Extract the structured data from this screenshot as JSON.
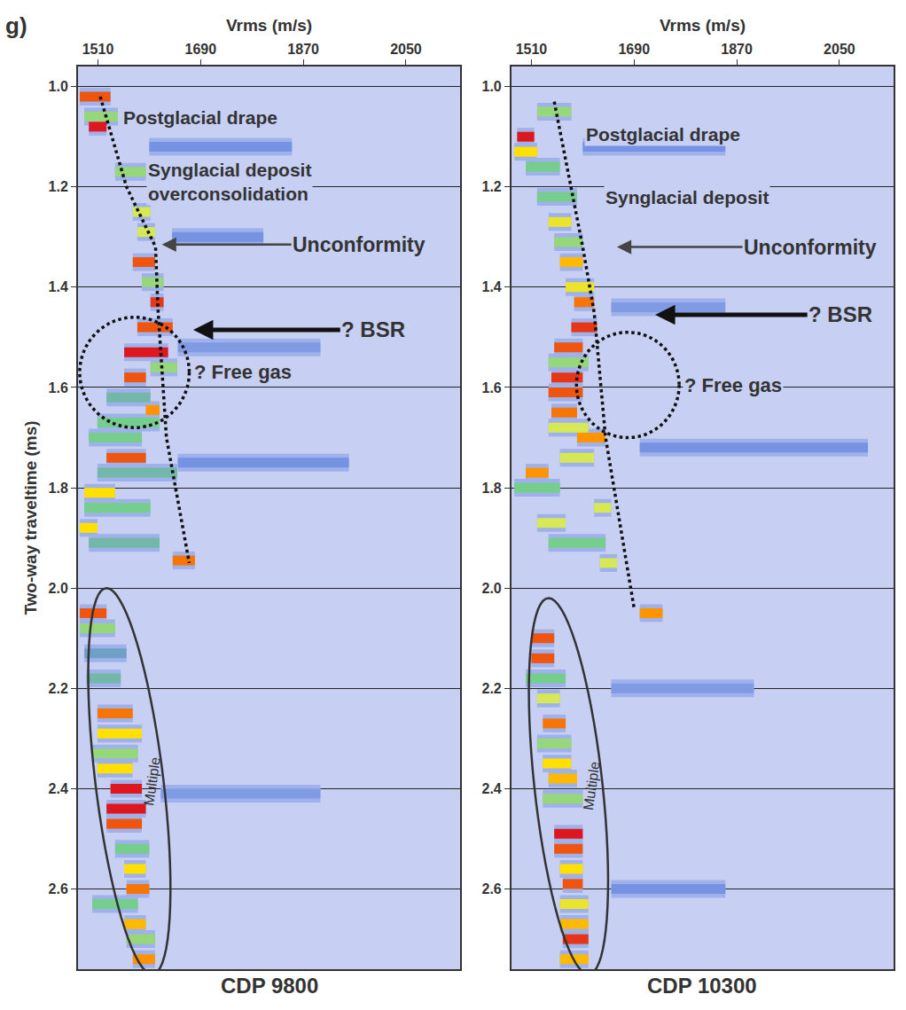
{
  "panel_label": "g)",
  "chart_data": [
    {
      "type": "semblance",
      "title": "CDP 9800",
      "x_label": "Vrms (m/s)",
      "y_label": "Two-way traveltime (ms)",
      "xlim": [
        1475,
        2145
      ],
      "xticks": [
        1510,
        1690,
        1870,
        2050
      ],
      "ylim": [
        0.96,
        2.76
      ],
      "yticks": [
        {
          "value": 1.0,
          "label": "1.0"
        },
        {
          "value": 1.2,
          "label": "1.2"
        },
        {
          "value": 1.4,
          "label": "1.4"
        },
        {
          "value": 1.6,
          "label": "1.6"
        },
        {
          "value": 1.8,
          "label": "1.8"
        },
        {
          "value": 2.0,
          "label": "2.0"
        },
        {
          "value": 2.2,
          "label": "2.2"
        },
        {
          "value": 2.4,
          "label": "2.4"
        },
        {
          "value": 2.6,
          "label": "2.6"
        }
      ],
      "grid": true,
      "semblance": [
        {
          "t": 1.02,
          "v": [
            1478,
            1532
          ],
          "value": 0.9
        },
        {
          "t": 1.06,
          "v": [
            1486,
            1545
          ],
          "value": 0.5
        },
        {
          "t": 1.08,
          "v": [
            1494,
            1525
          ],
          "value": 1.0
        },
        {
          "t": 1.12,
          "v": [
            1600,
            1850
          ],
          "value": 0.25
        },
        {
          "t": 1.17,
          "v": [
            1540,
            1594
          ],
          "value": 0.5
        },
        {
          "t": 1.25,
          "v": [
            1571,
            1602
          ],
          "value": 0.6
        },
        {
          "t": 1.29,
          "v": [
            1579,
            1610
          ],
          "value": 0.6
        },
        {
          "t": 1.3,
          "v": [
            1640,
            1800
          ],
          "value": 0.25
        },
        {
          "t": 1.35,
          "v": [
            1571,
            1610
          ],
          "value": 0.9
        },
        {
          "t": 1.39,
          "v": [
            1587,
            1625
          ],
          "value": 0.5
        },
        {
          "t": 1.43,
          "v": [
            1602,
            1625
          ],
          "value": 0.95
        },
        {
          "t": 1.48,
          "v": [
            1579,
            1641
          ],
          "value": 0.9
        },
        {
          "t": 1.52,
          "v": [
            1650,
            1900
          ],
          "value": 0.2
        },
        {
          "t": 1.53,
          "v": [
            1556,
            1633
          ],
          "value": 1.0
        },
        {
          "t": 1.56,
          "v": [
            1602,
            1649
          ],
          "value": 0.5
        },
        {
          "t": 1.58,
          "v": [
            1556,
            1594
          ],
          "value": 0.9
        },
        {
          "t": 1.62,
          "v": [
            1525,
            1602
          ],
          "value": 0.4
        },
        {
          "t": 1.645,
          "v": [
            1594,
            1618
          ],
          "value": 0.8
        },
        {
          "t": 1.67,
          "v": [
            1509,
            1618
          ],
          "value": 0.45
        },
        {
          "t": 1.7,
          "v": [
            1494,
            1587
          ],
          "value": 0.45
        },
        {
          "t": 1.74,
          "v": [
            1525,
            1594
          ],
          "value": 0.9
        },
        {
          "t": 1.75,
          "v": [
            1650,
            1950
          ],
          "value": 0.25
        },
        {
          "t": 1.77,
          "v": [
            1509,
            1649
          ],
          "value": 0.4
        },
        {
          "t": 1.81,
          "v": [
            1486,
            1540
          ],
          "value": 0.7
        },
        {
          "t": 1.84,
          "v": [
            1486,
            1602
          ],
          "value": 0.45
        },
        {
          "t": 1.88,
          "v": [
            1478,
            1509
          ],
          "value": 0.7
        },
        {
          "t": 1.91,
          "v": [
            1494,
            1618
          ],
          "value": 0.4
        },
        {
          "t": 1.945,
          "v": [
            1641,
            1680
          ],
          "value": 0.85
        },
        {
          "t": 2.05,
          "v": [
            1478,
            1525
          ],
          "value": 0.9
        },
        {
          "t": 2.08,
          "v": [
            1478,
            1540
          ],
          "value": 0.5
        },
        {
          "t": 2.13,
          "v": [
            1486,
            1560
          ],
          "value": 0.35
        },
        {
          "t": 2.18,
          "v": [
            1490,
            1550
          ],
          "value": 0.4
        },
        {
          "t": 2.25,
          "v": [
            1509,
            1571
          ],
          "value": 0.85
        },
        {
          "t": 2.29,
          "v": [
            1509,
            1587
          ],
          "value": 0.7
        },
        {
          "t": 2.33,
          "v": [
            1500,
            1580
          ],
          "value": 0.5
        },
        {
          "t": 2.36,
          "v": [
            1509,
            1571
          ],
          "value": 0.7
        },
        {
          "t": 2.4,
          "v": [
            1532,
            1587
          ],
          "value": 1.0
        },
        {
          "t": 2.41,
          "v": [
            1620,
            1900
          ],
          "value": 0.2
        },
        {
          "t": 2.44,
          "v": [
            1525,
            1594
          ],
          "value": 1.0
        },
        {
          "t": 2.47,
          "v": [
            1525,
            1587
          ],
          "value": 0.9
        },
        {
          "t": 2.52,
          "v": [
            1540,
            1600
          ],
          "value": 0.45
        },
        {
          "t": 2.56,
          "v": [
            1556,
            1594
          ],
          "value": 0.7
        },
        {
          "t": 2.6,
          "v": [
            1560,
            1600
          ],
          "value": 0.85
        },
        {
          "t": 2.63,
          "v": [
            1500,
            1580
          ],
          "value": 0.45
        },
        {
          "t": 2.67,
          "v": [
            1556,
            1594
          ],
          "value": 0.75
        },
        {
          "t": 2.7,
          "v": [
            1560,
            1610
          ],
          "value": 0.5
        },
        {
          "t": 2.74,
          "v": [
            1571,
            1610
          ],
          "value": 0.8
        }
      ],
      "velocity_pick": {
        "v": [
          1514,
          1560,
          1611,
          1615,
          1630,
          1670
        ],
        "t": [
          1.02,
          1.2,
          1.32,
          1.44,
          1.7,
          1.95
        ]
      },
      "annotations": [
        {
          "text": "Postglacial drape",
          "v": 1551,
          "t": 1.061
        },
        {
          "text": "Synglacial deposit\noverconsolidation",
          "v": 1594,
          "t": 1.19
        },
        {
          "text": "Unconformity",
          "v": 1622,
          "t": 1.315,
          "text_v": 1968,
          "line_style": "thin"
        },
        {
          "text": "? BSR",
          "v": 1677,
          "t": 1.485,
          "text_v": 1993,
          "line_style": "thick"
        }
      ],
      "regions": [
        {
          "label": "? Free gas",
          "shape": "circle",
          "v": [
            1478,
            1670
          ],
          "t": [
            1.46,
            1.68
          ]
        },
        {
          "label": "Multiple",
          "shape": "ellipse",
          "v": [
            1525,
            1605
          ],
          "t": [
            2.0,
            2.77
          ],
          "half_width": 60
        }
      ]
    },
    {
      "type": "semblance",
      "title": "CDP 10300",
      "x_label": "Vrms (m/s)",
      "xlim": [
        1475,
        2145
      ],
      "xticks": [
        1510,
        1690,
        1870,
        2050
      ],
      "ylim": [
        0.96,
        2.76
      ],
      "yticks": [
        {
          "value": 1.0,
          "label": "1.0"
        },
        {
          "value": 1.2,
          "label": "1.2"
        },
        {
          "value": 1.4,
          "label": "1.4"
        },
        {
          "value": 1.6,
          "label": "1.6"
        },
        {
          "value": 1.8,
          "label": "1.8"
        },
        {
          "value": 2.0,
          "label": "2.0"
        },
        {
          "value": 2.2,
          "label": "2.2"
        },
        {
          "value": 2.4,
          "label": "2.4"
        },
        {
          "value": 2.6,
          "label": "2.6"
        }
      ],
      "grid": true,
      "semblance": [
        {
          "t": 1.05,
          "v": [
            1520,
            1580
          ],
          "value": 0.5
        },
        {
          "t": 1.1,
          "v": [
            1485,
            1515
          ],
          "value": 1.0
        },
        {
          "t": 1.12,
          "v": [
            1600,
            1850
          ],
          "value": 0.25
        },
        {
          "t": 1.13,
          "v": [
            1480,
            1520
          ],
          "value": 0.7
        },
        {
          "t": 1.16,
          "v": [
            1500,
            1560
          ],
          "value": 0.45
        },
        {
          "t": 1.22,
          "v": [
            1520,
            1590
          ],
          "value": 0.45
        },
        {
          "t": 1.27,
          "v": [
            1540,
            1580
          ],
          "value": 0.65
        },
        {
          "t": 1.31,
          "v": [
            1550,
            1600
          ],
          "value": 0.5
        },
        {
          "t": 1.35,
          "v": [
            1560,
            1600
          ],
          "value": 0.75
        },
        {
          "t": 1.4,
          "v": [
            1570,
            1620
          ],
          "value": 0.65
        },
        {
          "t": 1.43,
          "v": [
            1585,
            1620
          ],
          "value": 0.85
        },
        {
          "t": 1.44,
          "v": [
            1650,
            1850
          ],
          "value": 0.2
        },
        {
          "t": 1.48,
          "v": [
            1580,
            1625
          ],
          "value": 0.95
        },
        {
          "t": 1.52,
          "v": [
            1550,
            1600
          ],
          "value": 0.9
        },
        {
          "t": 1.55,
          "v": [
            1540,
            1610
          ],
          "value": 0.5
        },
        {
          "t": 1.58,
          "v": [
            1545,
            1600
          ],
          "value": 0.95
        },
        {
          "t": 1.61,
          "v": [
            1540,
            1600
          ],
          "value": 0.9
        },
        {
          "t": 1.65,
          "v": [
            1545,
            1590
          ],
          "value": 0.85
        },
        {
          "t": 1.68,
          "v": [
            1540,
            1610
          ],
          "value": 0.6
        },
        {
          "t": 1.7,
          "v": [
            1590,
            1640
          ],
          "value": 0.8
        },
        {
          "t": 1.72,
          "v": [
            1700,
            2100
          ],
          "value": 0.25
        },
        {
          "t": 1.74,
          "v": [
            1560,
            1620
          ],
          "value": 0.6
        },
        {
          "t": 1.77,
          "v": [
            1500,
            1540
          ],
          "value": 0.8
        },
        {
          "t": 1.8,
          "v": [
            1480,
            1560
          ],
          "value": 0.45
        },
        {
          "t": 1.84,
          "v": [
            1620,
            1650
          ],
          "value": 0.6
        },
        {
          "t": 1.87,
          "v": [
            1520,
            1570
          ],
          "value": 0.6
        },
        {
          "t": 1.91,
          "v": [
            1540,
            1640
          ],
          "value": 0.45
        },
        {
          "t": 1.95,
          "v": [
            1630,
            1660
          ],
          "value": 0.6
        },
        {
          "t": 2.05,
          "v": [
            1700,
            1740
          ],
          "value": 0.8
        },
        {
          "t": 2.1,
          "v": [
            1510,
            1550
          ],
          "value": 0.9
        },
        {
          "t": 2.14,
          "v": [
            1510,
            1550
          ],
          "value": 0.9
        },
        {
          "t": 2.18,
          "v": [
            1500,
            1570
          ],
          "value": 0.45
        },
        {
          "t": 2.2,
          "v": [
            1650,
            1900
          ],
          "value": 0.2
        },
        {
          "t": 2.22,
          "v": [
            1520,
            1560
          ],
          "value": 0.6
        },
        {
          "t": 2.27,
          "v": [
            1530,
            1570
          ],
          "value": 0.85
        },
        {
          "t": 2.31,
          "v": [
            1520,
            1580
          ],
          "value": 0.5
        },
        {
          "t": 2.35,
          "v": [
            1530,
            1580
          ],
          "value": 0.7
        },
        {
          "t": 2.38,
          "v": [
            1540,
            1590
          ],
          "value": 0.75
        },
        {
          "t": 2.42,
          "v": [
            1530,
            1600
          ],
          "value": 0.5
        },
        {
          "t": 2.49,
          "v": [
            1550,
            1600
          ],
          "value": 1.0
        },
        {
          "t": 2.52,
          "v": [
            1550,
            1600
          ],
          "value": 0.9
        },
        {
          "t": 2.56,
          "v": [
            1560,
            1600
          ],
          "value": 0.7
        },
        {
          "t": 2.59,
          "v": [
            1565,
            1600
          ],
          "value": 0.9
        },
        {
          "t": 2.6,
          "v": [
            1650,
            1850
          ],
          "value": 0.25
        },
        {
          "t": 2.63,
          "v": [
            1560,
            1610
          ],
          "value": 0.65
        },
        {
          "t": 2.67,
          "v": [
            1560,
            1610
          ],
          "value": 0.75
        },
        {
          "t": 2.7,
          "v": [
            1565,
            1610
          ],
          "value": 0.95
        },
        {
          "t": 2.74,
          "v": [
            1560,
            1610
          ],
          "value": 0.75
        }
      ],
      "velocity_pick": {
        "v": [
          1550,
          1600,
          1620,
          1640,
          1690
        ],
        "t": [
          1.03,
          1.32,
          1.45,
          1.7,
          2.04
        ]
      },
      "annotations": [
        {
          "text": "Postglacial drape",
          "v": 1602,
          "t": 1.096
        },
        {
          "text": "Synglacial deposit",
          "v": 1636,
          "t": 1.22
        },
        {
          "text": "Unconformity",
          "v": 1660,
          "t": 1.32,
          "text_v": 1999,
          "line_style": "thin"
        },
        {
          "text": "? BSR",
          "v": 1727,
          "t": 1.455,
          "text_v": 2052,
          "line_style": "thick"
        }
      ],
      "regions": [
        {
          "label": "? Free gas",
          "shape": "circle",
          "v": [
            1589,
            1769
          ],
          "t": [
            1.49,
            1.7
          ]
        },
        {
          "label": "Multiple",
          "shape": "ellipse",
          "v": [
            1540,
            1610
          ],
          "t": [
            2.02,
            2.77
          ],
          "half_width": 60
        }
      ]
    }
  ]
}
